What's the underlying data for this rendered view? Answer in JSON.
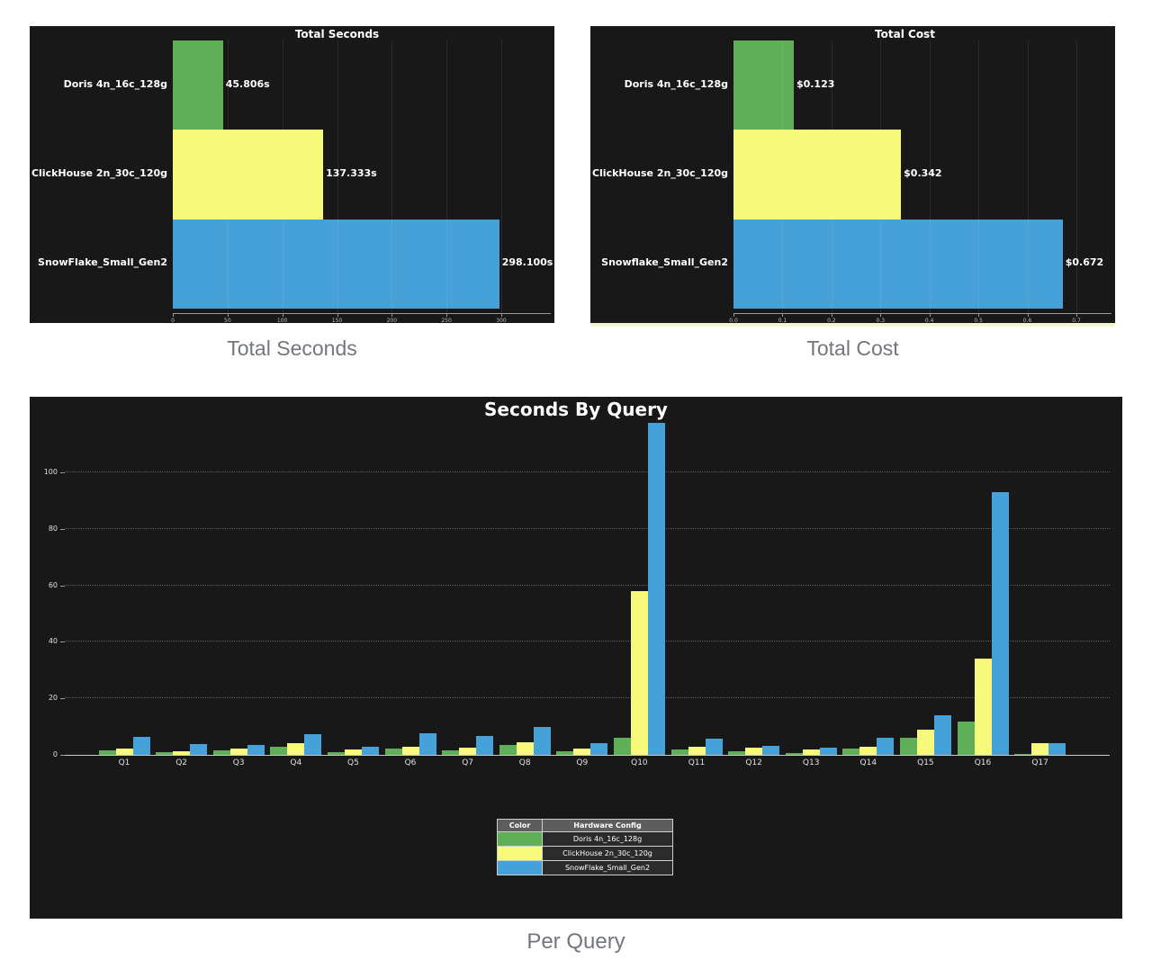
{
  "captions": {
    "total_seconds": "Total Seconds",
    "total_cost": "Total Cost",
    "per_query": "Per Query"
  },
  "colors": {
    "green": "#5fae58",
    "yellow": "#f7f97a",
    "blue": "#45a1d8",
    "chart_background": "#181818",
    "page_background": "#ffffff",
    "caption_text": "#73767c",
    "chart_text": "#ffffff",
    "tick_text": "#bdbdbd",
    "axis_line": "#9a9a9a",
    "dotted_grid": "#5c5c5c",
    "legend_header_bg": "#5d5d5d",
    "legend_row_bg": "#2b2b2b",
    "legend_border": "#cfcfcf"
  },
  "legend": {
    "headers": [
      "Color",
      "Hardware Config"
    ],
    "rows": [
      {
        "color_key": "green",
        "label": "Doris 4n_16c_128g"
      },
      {
        "color_key": "yellow",
        "label": "ClickHouse 2n_30c_120g"
      },
      {
        "color_key": "blue",
        "label": "SnowFlake_Small_Gen2"
      }
    ]
  },
  "chart_data": [
    {
      "id": "total-seconds",
      "type": "bar",
      "orientation": "horizontal",
      "title": "Total Seconds",
      "categories": [
        "Doris 4n_16c_128g",
        "ClickHouse 2n_30c_120g",
        "SnowFlake_Small_Gen2"
      ],
      "values": [
        45.806,
        137.333,
        298.1
      ],
      "value_labels": [
        "45.806s",
        "137.333s",
        "298.100s"
      ],
      "bar_colors": [
        "green",
        "yellow",
        "blue"
      ],
      "xticks": [
        0,
        50,
        100,
        150,
        200,
        250,
        300
      ],
      "xtick_labels": [
        "0",
        "50",
        "100",
        "150",
        "200",
        "250",
        "300"
      ],
      "xlim": [
        0,
        345
      ],
      "xlabel": "",
      "ylabel": "",
      "grid": "vertical-faint"
    },
    {
      "id": "total-cost",
      "type": "bar",
      "orientation": "horizontal",
      "title": "Total Cost",
      "categories": [
        "Doris 4n_16c_128g",
        "ClickHouse 2n_30c_120g",
        "Snowflake_Small_Gen2"
      ],
      "values": [
        0.123,
        0.342,
        0.672
      ],
      "value_labels": [
        "$0.123",
        "$0.342",
        "$0.672"
      ],
      "bar_colors": [
        "green",
        "yellow",
        "blue"
      ],
      "xticks": [
        0.0,
        0.1,
        0.2,
        0.3,
        0.4,
        0.5,
        0.6,
        0.7
      ],
      "xtick_labels": [
        "0.0",
        "0.1",
        "0.2",
        "0.3",
        "0.4",
        "0.5",
        "0.6",
        "0.7"
      ],
      "xlim": [
        0,
        0.775
      ],
      "xlabel": "",
      "ylabel": "",
      "grid": "vertical-faint"
    },
    {
      "id": "seconds-by-query",
      "type": "bar",
      "orientation": "vertical-grouped",
      "title": "Seconds By Query",
      "categories": [
        "Q1",
        "Q2",
        "Q3",
        "Q4",
        "Q5",
        "Q6",
        "Q7",
        "Q8",
        "Q9",
        "Q10",
        "Q11",
        "Q12",
        "Q13",
        "Q14",
        "Q15",
        "Q16",
        "Q17"
      ],
      "series": [
        {
          "name": "Doris 4n_16c_128g",
          "color_key": "green",
          "values": [
            1.6,
            0.9,
            1.7,
            2.8,
            1.1,
            2.2,
            1.7,
            3.5,
            1.2,
            5.9,
            1.9,
            1.3,
            0.7,
            2.2,
            6.0,
            11.7,
            0.4
          ]
        },
        {
          "name": "ClickHouse 2n_30c_120g",
          "color_key": "yellow",
          "values": [
            2.3,
            1.4,
            2.3,
            4.1,
            2.0,
            2.9,
            2.5,
            4.3,
            2.1,
            58.0,
            3.0,
            2.4,
            1.9,
            2.9,
            9.0,
            34.0,
            4.0
          ]
        },
        {
          "name": "SnowFlake_Small_Gen2",
          "color_key": "blue",
          "values": [
            6.3,
            3.7,
            3.5,
            7.4,
            2.9,
            7.7,
            6.8,
            10.0,
            4.2,
            117.5,
            5.6,
            3.2,
            2.4,
            6.2,
            14.0,
            93.0,
            4.0
          ]
        }
      ],
      "yticks": [
        0,
        20,
        40,
        60,
        80,
        100
      ],
      "ytick_labels": [
        "0",
        "20",
        "40",
        "60",
        "80",
        "100"
      ],
      "ylim": [
        0,
        117.5
      ],
      "xlabel": "",
      "ylabel": "",
      "grid": "dotted-horizontal",
      "legend_position": "bottom-center-table"
    }
  ]
}
